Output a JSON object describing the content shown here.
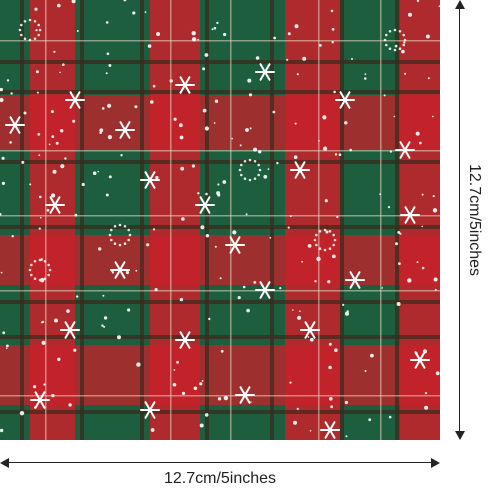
{
  "colors": {
    "green": "#1c5e3e",
    "red": "#c8212a",
    "dark": "#3b2a1c",
    "snow": "#ffffff",
    "line": "#222222"
  },
  "dimensions": {
    "width_label": "12.7cm/5inches",
    "height_label": "12.7cm/5inches"
  },
  "icons": [
    "snowflake-icon",
    "arrow-left-icon",
    "arrow-right-icon",
    "arrow-up-icon",
    "arrow-down-icon"
  ]
}
